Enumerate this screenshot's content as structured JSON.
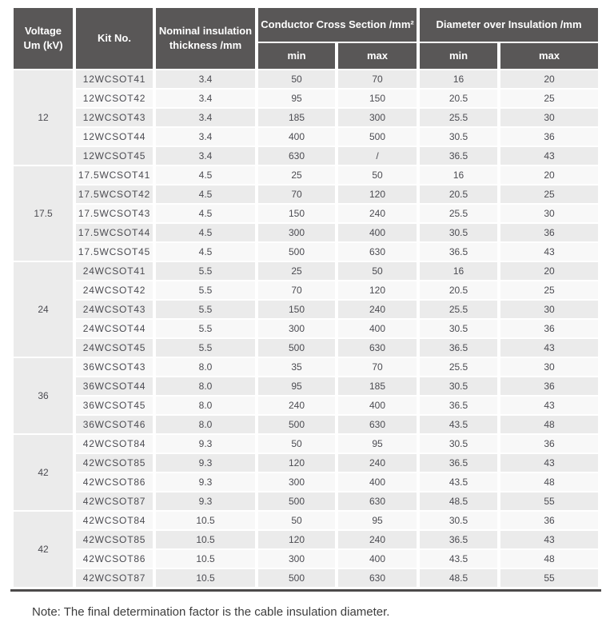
{
  "header": {
    "voltage": "Voltage\nUm (kV)",
    "kit_no": "Kit No.",
    "nominal_thickness": "Nominal insulation\nthickness /mm",
    "conductor_cross_section": "Conductor Cross Section /mm²",
    "diameter_over_insulation": "Diameter over Insulation /mm",
    "min": "min",
    "max": "max"
  },
  "table": {
    "column_keys": [
      "kit_no",
      "nominal_insulation_thickness_mm",
      "conductor_cross_section_min",
      "conductor_cross_section_max",
      "diameter_over_insulation_min",
      "diameter_over_insulation_max"
    ],
    "groups": [
      {
        "voltage": "12",
        "rows": [
          [
            "12WCSOT41",
            "3.4",
            "50",
            "70",
            "16",
            "20"
          ],
          [
            "12WCSOT42",
            "3.4",
            "95",
            "150",
            "20.5",
            "25"
          ],
          [
            "12WCSOT43",
            "3.4",
            "185",
            "300",
            "25.5",
            "30"
          ],
          [
            "12WCSOT44",
            "3.4",
            "400",
            "500",
            "30.5",
            "36"
          ],
          [
            "12WCSOT45",
            "3.4",
            "630",
            "/",
            "36.5",
            "43"
          ]
        ]
      },
      {
        "voltage": "17.5",
        "rows": [
          [
            "17.5WCSOT41",
            "4.5",
            "25",
            "50",
            "16",
            "20"
          ],
          [
            "17.5WCSOT42",
            "4.5",
            "70",
            "120",
            "20.5",
            "25"
          ],
          [
            "17.5WCSOT43",
            "4.5",
            "150",
            "240",
            "25.5",
            "30"
          ],
          [
            "17.5WCSOT44",
            "4.5",
            "300",
            "400",
            "30.5",
            "36"
          ],
          [
            "17.5WCSOT45",
            "4.5",
            "500",
            "630",
            "36.5",
            "43"
          ]
        ]
      },
      {
        "voltage": "24",
        "rows": [
          [
            "24WCSOT41",
            "5.5",
            "25",
            "50",
            "16",
            "20"
          ],
          [
            "24WCSOT42",
            "5.5",
            "70",
            "120",
            "20.5",
            "25"
          ],
          [
            "24WCSOT43",
            "5.5",
            "150",
            "240",
            "25.5",
            "30"
          ],
          [
            "24WCSOT44",
            "5.5",
            "300",
            "400",
            "30.5",
            "36"
          ],
          [
            "24WCSOT45",
            "5.5",
            "500",
            "630",
            "36.5",
            "43"
          ]
        ]
      },
      {
        "voltage": "36",
        "rows": [
          [
            "36WCSOT43",
            "8.0",
            "35",
            "70",
            "25.5",
            "30"
          ],
          [
            "36WCSOT44",
            "8.0",
            "95",
            "185",
            "30.5",
            "36"
          ],
          [
            "36WCSOT45",
            "8.0",
            "240",
            "400",
            "36.5",
            "43"
          ],
          [
            "36WCSOT46",
            "8.0",
            "500",
            "630",
            "43.5",
            "48"
          ]
        ]
      },
      {
        "voltage": "42",
        "rows": [
          [
            "42WCSOT84",
            "9.3",
            "50",
            "95",
            "30.5",
            "36"
          ],
          [
            "42WCSOT85",
            "9.3",
            "120",
            "240",
            "36.5",
            "43"
          ],
          [
            "42WCSOT86",
            "9.3",
            "300",
            "400",
            "43.5",
            "48"
          ],
          [
            "42WCSOT87",
            "9.3",
            "500",
            "630",
            "48.5",
            "55"
          ]
        ]
      },
      {
        "voltage": "42",
        "rows": [
          [
            "42WCSOT84",
            "10.5",
            "50",
            "95",
            "30.5",
            "36"
          ],
          [
            "42WCSOT85",
            "10.5",
            "120",
            "240",
            "36.5",
            "43"
          ],
          [
            "42WCSOT86",
            "10.5",
            "300",
            "400",
            "43.5",
            "48"
          ],
          [
            "42WCSOT87",
            "10.5",
            "500",
            "630",
            "48.5",
            "55"
          ]
        ]
      }
    ]
  },
  "note": "Note: The final determination factor is the cable insulation diameter.",
  "colors": {
    "header_bg": "#595757",
    "header_text": "#ffffff",
    "row_odd": "#ebebeb",
    "row_even": "#f8f8f8",
    "voltage_cell": "#ebebeb",
    "body_text": "#4b4b51",
    "bottom_rule": "#4c4a4a"
  }
}
